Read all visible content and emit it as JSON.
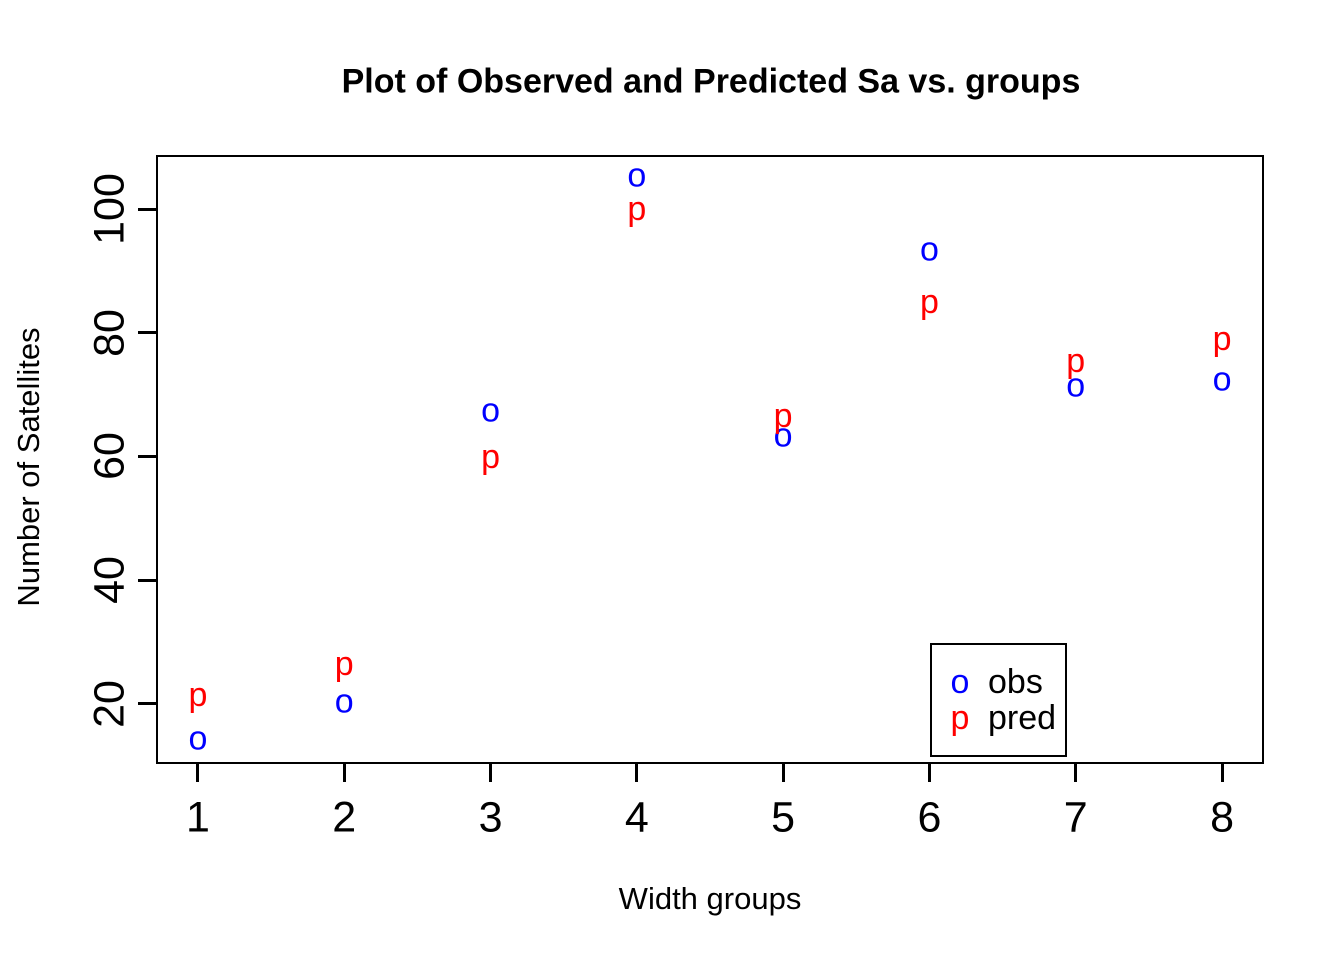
{
  "figure": {
    "background_color": "#ffffff",
    "axis_color": "#000000",
    "obs_color": "#0000ff",
    "pred_color": "#ff0000"
  },
  "chart_data": {
    "type": "scatter",
    "title": "Plot of Observed and Predicted Sa vs. groups",
    "xlabel": "Width groups",
    "ylabel": "Number of Satellites",
    "x": [
      1,
      2,
      3,
      4,
      5,
      6,
      7,
      8
    ],
    "x_ticks": [
      "1",
      "2",
      "3",
      "4",
      "5",
      "6",
      "7",
      "8"
    ],
    "y_ticks": [
      "20",
      "40",
      "60",
      "80",
      "100"
    ],
    "y_tick_values": [
      20,
      40,
      60,
      80,
      100
    ],
    "xlim": [
      0.72,
      8.28
    ],
    "ylim": [
      10.4,
      108.6
    ],
    "grid": false,
    "legend_position": "inside-bottom-right",
    "series": [
      {
        "name": "obs",
        "marker": "o",
        "color": "#0000ff",
        "values": [
          14,
          20,
          67,
          105,
          63,
          93,
          71,
          72
        ]
      },
      {
        "name": "pred",
        "marker": "p",
        "color": "#ff0000",
        "values": [
          20.5,
          25.5,
          59,
          99,
          65.5,
          84,
          74.5,
          78
        ]
      }
    ],
    "legend": [
      {
        "marker": "o",
        "label": "obs",
        "color": "#0000ff"
      },
      {
        "marker": "p",
        "label": "pred",
        "color": "#ff0000"
      }
    ]
  }
}
